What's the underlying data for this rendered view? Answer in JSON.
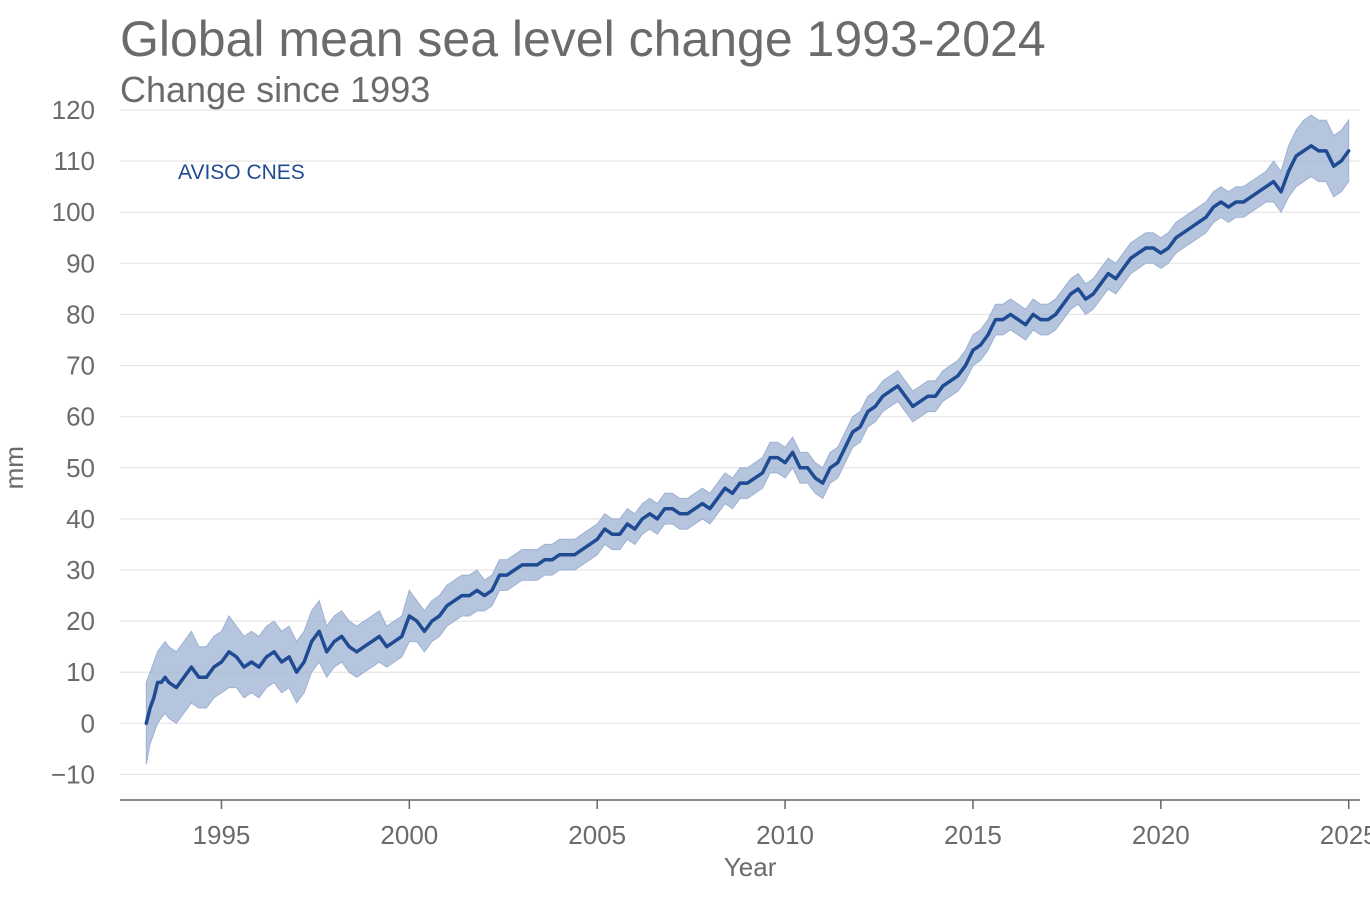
{
  "chart_data": {
    "type": "line",
    "title": "Global mean sea level change 1993-2024",
    "subtitle": "Change since 1993",
    "xlabel": "Year",
    "ylabel": "mm",
    "xlim": [
      1992.3,
      1995.0
    ],
    "x_range": [
      1992.3,
      2025.3
    ],
    "ylim": [
      -15,
      120
    ],
    "x_ticks": [
      1995,
      2000,
      2005,
      2010,
      2015,
      2020,
      2025
    ],
    "y_ticks": [
      -10,
      0,
      10,
      20,
      30,
      40,
      50,
      60,
      70,
      80,
      90,
      100,
      110,
      120
    ],
    "y_tick_labels": [
      "−10",
      "0",
      "10",
      "20",
      "30",
      "40",
      "50",
      "60",
      "70",
      "80",
      "90",
      "100",
      "110",
      "120"
    ],
    "grid": true,
    "legend": "none",
    "colors": {
      "line": "#1f4b93",
      "band": "#9db1d3",
      "grid": "#e6e6e6",
      "axis": "#666666",
      "text": "#6b6b6b"
    },
    "series": [
      {
        "name": "AVISO CNES",
        "x": [
          1993.0,
          1993.1,
          1993.2,
          1993.3,
          1993.4,
          1993.5,
          1993.6,
          1993.8,
          1994.0,
          1994.2,
          1994.4,
          1994.6,
          1994.8,
          1995.0,
          1995.2,
          1995.4,
          1995.6,
          1995.8,
          1996.0,
          1996.2,
          1996.4,
          1996.6,
          1996.8,
          1997.0,
          1997.2,
          1997.4,
          1997.6,
          1997.8,
          1998.0,
          1998.2,
          1998.4,
          1998.6,
          1998.8,
          1999.0,
          1999.2,
          1999.4,
          1999.6,
          1999.8,
          2000.0,
          2000.2,
          2000.4,
          2000.6,
          2000.8,
          2001.0,
          2001.2,
          2001.4,
          2001.6,
          2001.8,
          2002.0,
          2002.2,
          2002.4,
          2002.6,
          2002.8,
          2003.0,
          2003.2,
          2003.4,
          2003.6,
          2003.8,
          2004.0,
          2004.2,
          2004.4,
          2004.6,
          2004.8,
          2005.0,
          2005.2,
          2005.4,
          2005.6,
          2005.8,
          2006.0,
          2006.2,
          2006.4,
          2006.6,
          2006.8,
          2007.0,
          2007.2,
          2007.4,
          2007.6,
          2007.8,
          2008.0,
          2008.2,
          2008.4,
          2008.6,
          2008.8,
          2009.0,
          2009.2,
          2009.4,
          2009.6,
          2009.8,
          2010.0,
          2010.2,
          2010.4,
          2010.6,
          2010.8,
          2011.0,
          2011.2,
          2011.4,
          2011.6,
          2011.8,
          2012.0,
          2012.2,
          2012.4,
          2012.6,
          2012.8,
          2013.0,
          2013.2,
          2013.4,
          2013.6,
          2013.8,
          2014.0,
          2014.2,
          2014.4,
          2014.6,
          2014.8,
          2015.0,
          2015.2,
          2015.4,
          2015.6,
          2015.8,
          2016.0,
          2016.2,
          2016.4,
          2016.6,
          2016.8,
          2017.0,
          2017.2,
          2017.4,
          2017.6,
          2017.8,
          2018.0,
          2018.2,
          2018.4,
          2018.6,
          2018.8,
          2019.0,
          2019.2,
          2019.4,
          2019.6,
          2019.8,
          2020.0,
          2020.2,
          2020.4,
          2020.6,
          2020.8,
          2021.0,
          2021.2,
          2021.4,
          2021.6,
          2021.8,
          2022.0,
          2022.2,
          2022.4,
          2022.6,
          2022.8,
          2023.0,
          2023.2,
          2023.4,
          2023.6,
          2023.8,
          2024.0,
          2024.2,
          2024.4,
          2024.6,
          2024.8,
          2025.0
        ],
        "y": [
          0,
          3,
          5,
          8,
          8,
          9,
          8,
          7,
          9,
          11,
          9,
          9,
          11,
          12,
          14,
          13,
          11,
          12,
          11,
          13,
          14,
          12,
          13,
          10,
          12,
          16,
          18,
          14,
          16,
          17,
          15,
          14,
          15,
          16,
          17,
          15,
          16,
          17,
          21,
          20,
          18,
          20,
          21,
          23,
          24,
          25,
          25,
          26,
          25,
          26,
          29,
          29,
          30,
          31,
          31,
          31,
          32,
          32,
          33,
          33,
          33,
          34,
          35,
          36,
          38,
          37,
          37,
          39,
          38,
          40,
          41,
          40,
          42,
          42,
          41,
          41,
          42,
          43,
          42,
          44,
          46,
          45,
          47,
          47,
          48,
          49,
          52,
          52,
          51,
          53,
          50,
          50,
          48,
          47,
          50,
          51,
          54,
          57,
          58,
          61,
          62,
          64,
          65,
          66,
          64,
          62,
          63,
          64,
          64,
          66,
          67,
          68,
          70,
          73,
          74,
          76,
          79,
          79,
          80,
          79,
          78,
          80,
          79,
          79,
          80,
          82,
          84,
          85,
          83,
          84,
          86,
          88,
          87,
          89,
          91,
          92,
          93,
          93,
          92,
          93,
          95,
          96,
          97,
          98,
          99,
          101,
          102,
          101,
          102,
          102,
          103,
          104,
          105,
          106,
          104,
          108,
          111,
          112,
          113,
          112,
          112,
          109,
          110,
          112
        ],
        "lower": [
          -8,
          -4,
          -2,
          0,
          1,
          2,
          1,
          0,
          2,
          4,
          3,
          3,
          5,
          6,
          7,
          7,
          5,
          6,
          5,
          7,
          8,
          6,
          7,
          4,
          6,
          10,
          12,
          9,
          11,
          12,
          10,
          9,
          10,
          11,
          12,
          11,
          12,
          13,
          16,
          16,
          14,
          16,
          17,
          19,
          20,
          21,
          21,
          22,
          22,
          23,
          26,
          26,
          27,
          28,
          28,
          28,
          29,
          29,
          30,
          30,
          30,
          31,
          32,
          33,
          35,
          34,
          34,
          36,
          35,
          37,
          38,
          37,
          39,
          39,
          38,
          38,
          39,
          40,
          39,
          41,
          43,
          42,
          44,
          44,
          45,
          46,
          49,
          49,
          48,
          50,
          47,
          47,
          45,
          44,
          47,
          48,
          51,
          54,
          55,
          58,
          59,
          61,
          62,
          63,
          61,
          59,
          60,
          61,
          61,
          63,
          64,
          65,
          67,
          70,
          71,
          73,
          76,
          76,
          77,
          76,
          75,
          77,
          76,
          76,
          77,
          79,
          81,
          82,
          80,
          81,
          83,
          85,
          84,
          86,
          88,
          89,
          90,
          90,
          89,
          90,
          92,
          93,
          94,
          95,
          96,
          98,
          99,
          98,
          99,
          99,
          100,
          101,
          102,
          102,
          100,
          103,
          105,
          106,
          107,
          106,
          106,
          103,
          104,
          106
        ],
        "upper": [
          8,
          10,
          12,
          14,
          15,
          16,
          15,
          14,
          16,
          18,
          15,
          15,
          17,
          18,
          21,
          19,
          17,
          18,
          17,
          19,
          20,
          18,
          19,
          16,
          18,
          22,
          24,
          19,
          21,
          22,
          20,
          19,
          20,
          21,
          22,
          19,
          20,
          21,
          26,
          24,
          22,
          24,
          25,
          27,
          28,
          29,
          29,
          30,
          28,
          29,
          32,
          32,
          33,
          34,
          34,
          34,
          35,
          35,
          36,
          36,
          36,
          37,
          38,
          39,
          41,
          40,
          40,
          42,
          41,
          43,
          44,
          43,
          45,
          45,
          44,
          44,
          45,
          46,
          45,
          47,
          49,
          48,
          50,
          50,
          51,
          52,
          55,
          55,
          54,
          56,
          53,
          53,
          51,
          50,
          53,
          54,
          57,
          60,
          61,
          64,
          65,
          67,
          68,
          69,
          67,
          65,
          66,
          67,
          67,
          69,
          70,
          71,
          73,
          76,
          77,
          79,
          82,
          82,
          83,
          82,
          81,
          83,
          82,
          82,
          83,
          85,
          87,
          88,
          86,
          87,
          89,
          91,
          90,
          92,
          94,
          95,
          96,
          96,
          95,
          96,
          98,
          99,
          100,
          101,
          102,
          104,
          105,
          104,
          105,
          105,
          106,
          107,
          108,
          110,
          108,
          113,
          116,
          118,
          119,
          118,
          118,
          115,
          116,
          118
        ]
      }
    ]
  }
}
